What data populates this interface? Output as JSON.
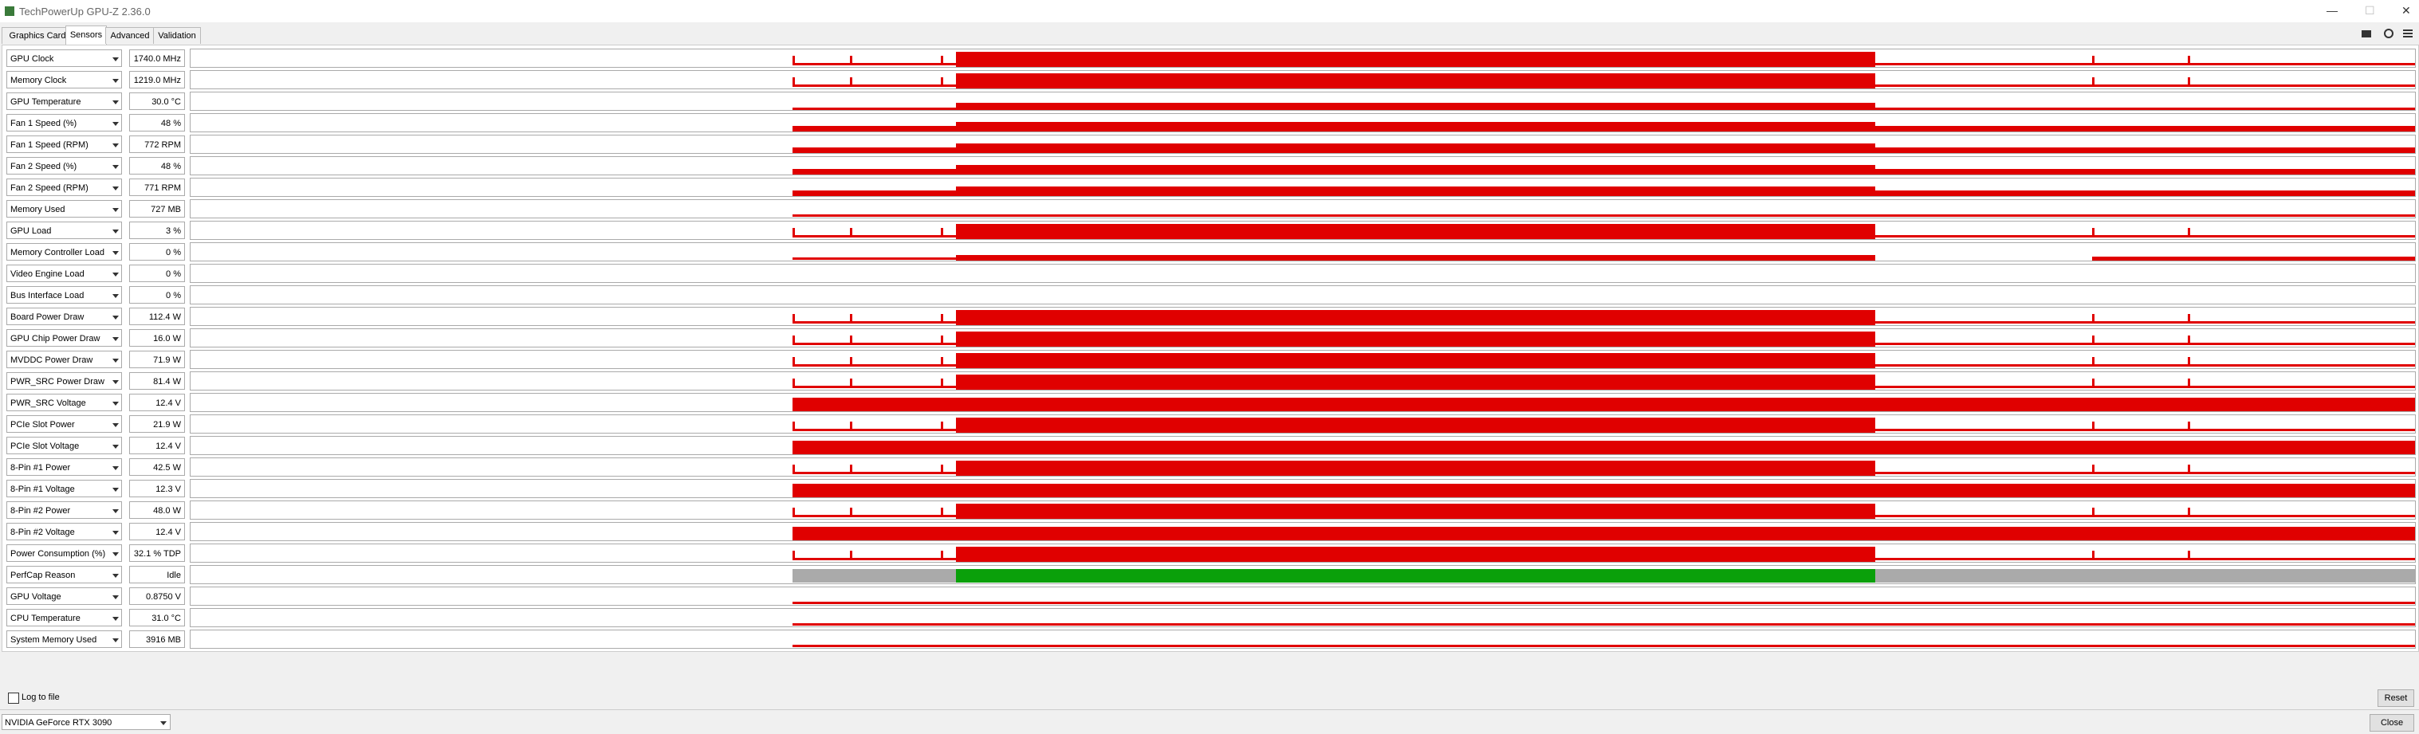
{
  "window": {
    "title": "TechPowerUp GPU-Z 2.36.0"
  },
  "tabs": [
    "Graphics Card",
    "Sensors",
    "Advanced",
    "Validation"
  ],
  "sensors": [
    {
      "label": "GPU Clock",
      "value": "1740.0 MHz"
    },
    {
      "label": "Memory Clock",
      "value": "1219.0 MHz"
    },
    {
      "label": "GPU Temperature",
      "value": "30.0 °C"
    },
    {
      "label": "Fan 1 Speed (%)",
      "value": "48 %"
    },
    {
      "label": "Fan 1 Speed (RPM)",
      "value": "772 RPM"
    },
    {
      "label": "Fan 2 Speed (%)",
      "value": "48 %"
    },
    {
      "label": "Fan 2 Speed (RPM)",
      "value": "771 RPM"
    },
    {
      "label": "Memory Used",
      "value": "727 MB"
    },
    {
      "label": "GPU Load",
      "value": "3 %"
    },
    {
      "label": "Memory Controller Load",
      "value": "0 %"
    },
    {
      "label": "Video Engine Load",
      "value": "0 %"
    },
    {
      "label": "Bus Interface Load",
      "value": "0 %"
    },
    {
      "label": "Board Power Draw",
      "value": "112.4 W"
    },
    {
      "label": "GPU Chip Power Draw",
      "value": "16.0 W"
    },
    {
      "label": "MVDDC Power Draw",
      "value": "71.9 W"
    },
    {
      "label": "PWR_SRC Power Draw",
      "value": "81.4 W"
    },
    {
      "label": "PWR_SRC Voltage",
      "value": "12.4 V"
    },
    {
      "label": "PCIe Slot Power",
      "value": "21.9 W"
    },
    {
      "label": "PCIe Slot Voltage",
      "value": "12.4 V"
    },
    {
      "label": "8-Pin #1 Power",
      "value": "42.5 W"
    },
    {
      "label": "8-Pin #1 Voltage",
      "value": "12.3 V"
    },
    {
      "label": "8-Pin #2 Power",
      "value": "48.0 W"
    },
    {
      "label": "8-Pin #2 Voltage",
      "value": "12.4 V"
    },
    {
      "label": "Power Consumption (%)",
      "value": "32.1 % TDP"
    },
    {
      "label": "PerfCap Reason",
      "value": "Idle"
    },
    {
      "label": "GPU Voltage",
      "value": "0.8750 V"
    },
    {
      "label": "CPU Temperature",
      "value": "31.0 °C"
    },
    {
      "label": "System Memory Used",
      "value": "3916 MB"
    }
  ],
  "log_to_file": "Log to file",
  "reset_button": "Reset",
  "gpu_select": "NVIDIA GeForce RTX 3090",
  "close_button": "Close"
}
